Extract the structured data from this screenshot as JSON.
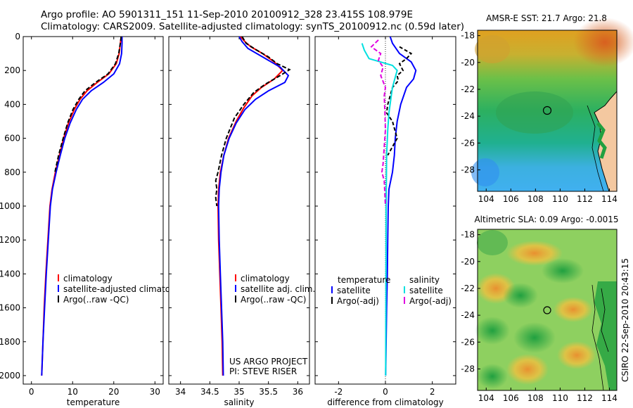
{
  "header": {
    "line1": "Argo profile: AO 5901311_151 11-Sep-2010 20100912_328 23.415S 108.979E",
    "line2": "Climatology: CARS2009. Satellite-adjusted climatology: synTS_20100912.nc (0.59d later)"
  },
  "side_text": "CSIRO 22-Sep-2010 20:43:15",
  "colors": {
    "climatology": "#ff0000",
    "satellite": "#0000ff",
    "argo": "#000000",
    "sal_satellite": "#00e0e0",
    "sal_argo": "#e000e0",
    "zero_line": "#000000"
  },
  "chart_data": [
    {
      "type": "line",
      "xlabel": "temperature",
      "xlim": [
        -2,
        32
      ],
      "ylim": [
        2050,
        0
      ],
      "xticks": [
        "0",
        "10",
        "20",
        "30"
      ],
      "xtick_values": [
        0,
        10,
        20,
        30
      ],
      "yticks": [
        "0",
        "200",
        "400",
        "600",
        "800",
        "1000",
        "1200",
        "1400",
        "1600",
        "1800",
        "2000"
      ],
      "ytick_values": [
        0,
        200,
        400,
        600,
        800,
        1000,
        1200,
        1400,
        1600,
        1800,
        2000
      ],
      "legend": [
        "climatology",
        "satellite-adjusted climatology",
        "Argo(..raw -QC)"
      ],
      "series": [
        {
          "name": "climatology",
          "color": "#ff0000",
          "dash": "none",
          "points": [
            [
              21.8,
              0
            ],
            [
              21.6,
              40
            ],
            [
              21.3,
              100
            ],
            [
              20.6,
              160
            ],
            [
              18.8,
              220
            ],
            [
              16.0,
              270
            ],
            [
              13.5,
              320
            ],
            [
              11.8,
              370
            ],
            [
              10.4,
              430
            ],
            [
              9.0,
              510
            ],
            [
              7.8,
              600
            ],
            [
              6.8,
              700
            ],
            [
              5.8,
              800
            ],
            [
              5.0,
              900
            ],
            [
              4.5,
              1000
            ],
            [
              4.0,
              1200
            ],
            [
              3.5,
              1400
            ],
            [
              3.1,
              1600
            ],
            [
              2.8,
              1800
            ],
            [
              2.5,
              2000
            ]
          ]
        },
        {
          "name": "satellite-adjusted climatology",
          "color": "#0000ff",
          "dash": "none",
          "points": [
            [
              22.0,
              0
            ],
            [
              22.0,
              40
            ],
            [
              21.9,
              100
            ],
            [
              21.4,
              160
            ],
            [
              20.0,
              220
            ],
            [
              17.5,
              270
            ],
            [
              14.5,
              320
            ],
            [
              12.4,
              370
            ],
            [
              10.9,
              430
            ],
            [
              9.4,
              510
            ],
            [
              8.1,
              600
            ],
            [
              7.0,
              700
            ],
            [
              6.0,
              800
            ],
            [
              5.1,
              900
            ],
            [
              4.6,
              1000
            ],
            [
              4.1,
              1200
            ],
            [
              3.6,
              1400
            ],
            [
              3.2,
              1600
            ],
            [
              2.8,
              1800
            ],
            [
              2.5,
              2000
            ]
          ]
        },
        {
          "name": "Argo(..raw -QC)",
          "color": "#000000",
          "dash": "6,3",
          "points": [
            [
              21.8,
              0
            ],
            [
              21.6,
              40
            ],
            [
              21.2,
              100
            ],
            [
              20.4,
              160
            ],
            [
              18.6,
              220
            ],
            [
              15.6,
              270
            ],
            [
              13.0,
              320
            ],
            [
              11.5,
              370
            ],
            [
              10.1,
              430
            ],
            [
              8.8,
              510
            ],
            [
              7.7,
              600
            ],
            [
              6.6,
              700
            ],
            [
              5.7,
              800
            ]
          ]
        }
      ],
      "annotations": []
    },
    {
      "type": "line",
      "xlabel": "salinity",
      "xlim": [
        33.8,
        36.2
      ],
      "ylim": [
        2050,
        0
      ],
      "xticks": [
        "34",
        "34.5",
        "35",
        "35.5",
        "36"
      ],
      "xtick_values": [
        34,
        34.5,
        35,
        35.5,
        36
      ],
      "legend": [
        "climatology",
        "satellite adj. clim.",
        "Argo(..raw -QC)"
      ],
      "series": [
        {
          "name": "climatology",
          "color": "#ff0000",
          "dash": "none",
          "points": [
            [
              35.02,
              0
            ],
            [
              35.1,
              30
            ],
            [
              35.2,
              60
            ],
            [
              35.4,
              100
            ],
            [
              35.6,
              150
            ],
            [
              35.74,
              200
            ],
            [
              35.6,
              250
            ],
            [
              35.38,
              300
            ],
            [
              35.22,
              350
            ],
            [
              35.08,
              420
            ],
            [
              34.95,
              500
            ],
            [
              34.82,
              600
            ],
            [
              34.74,
              700
            ],
            [
              34.68,
              800
            ],
            [
              34.65,
              900
            ],
            [
              34.64,
              1000
            ],
            [
              34.65,
              1200
            ],
            [
              34.67,
              1400
            ],
            [
              34.69,
              1600
            ],
            [
              34.71,
              1800
            ],
            [
              34.72,
              2000
            ]
          ]
        },
        {
          "name": "satellite adj. clim.",
          "color": "#0000ff",
          "dash": "none",
          "points": [
            [
              35.0,
              0
            ],
            [
              35.05,
              30
            ],
            [
              35.15,
              70
            ],
            [
              35.4,
              120
            ],
            [
              35.7,
              180
            ],
            [
              35.84,
              230
            ],
            [
              35.78,
              270
            ],
            [
              35.5,
              320
            ],
            [
              35.28,
              370
            ],
            [
              35.1,
              430
            ],
            [
              34.95,
              510
            ],
            [
              34.83,
              600
            ],
            [
              34.74,
              700
            ],
            [
              34.69,
              800
            ],
            [
              34.66,
              900
            ],
            [
              34.65,
              1000
            ],
            [
              34.66,
              1200
            ],
            [
              34.68,
              1400
            ],
            [
              34.7,
              1600
            ],
            [
              34.72,
              1800
            ],
            [
              34.73,
              2000
            ]
          ]
        },
        {
          "name": "Argo(..raw -QC)",
          "color": "#000000",
          "dash": "6,3",
          "points": [
            [
              35.05,
              0
            ],
            [
              35.12,
              40
            ],
            [
              35.3,
              80
            ],
            [
              35.5,
              120
            ],
            [
              35.65,
              160
            ],
            [
              35.86,
              195
            ],
            [
              35.7,
              230
            ],
            [
              35.45,
              280
            ],
            [
              35.25,
              330
            ],
            [
              35.08,
              400
            ],
            [
              34.92,
              480
            ],
            [
              34.78,
              600
            ],
            [
              34.7,
              700
            ],
            [
              34.64,
              800
            ],
            [
              34.6,
              850
            ],
            [
              34.62,
              900
            ],
            [
              34.6,
              950
            ],
            [
              34.62,
              1000
            ]
          ]
        }
      ],
      "annotations": [
        "US ARGO PROJECT",
        "PI: STEVE RISER"
      ]
    },
    {
      "type": "line",
      "xlabel": "difference from climatology",
      "xlim": [
        -3,
        3
      ],
      "ylim": [
        2050,
        0
      ],
      "xticks": [
        "-2",
        "0",
        "2"
      ],
      "xtick_values": [
        -2,
        0,
        2
      ],
      "legend_headers": [
        "temperature",
        "salinity"
      ],
      "legend": [
        "satellite",
        "Argo(-adj)",
        "satellite",
        "Argo(-adj)"
      ],
      "series": [
        {
          "name": "satellite",
          "group": "temperature",
          "color": "#0000ff",
          "dash": "none",
          "points": [
            [
              0.2,
              0
            ],
            [
              0.3,
              40
            ],
            [
              0.6,
              100
            ],
            [
              1.1,
              150
            ],
            [
              1.3,
              200
            ],
            [
              1.2,
              250
            ],
            [
              0.9,
              300
            ],
            [
              0.65,
              400
            ],
            [
              0.5,
              500
            ],
            [
              0.42,
              600
            ],
            [
              0.38,
              700
            ],
            [
              0.3,
              800
            ],
            [
              0.15,
              900
            ],
            [
              0.12,
              1000
            ],
            [
              0.1,
              1200
            ],
            [
              0.08,
              1400
            ],
            [
              0.05,
              1600
            ],
            [
              0.03,
              1800
            ],
            [
              0.01,
              2000
            ]
          ]
        },
        {
          "name": "Argo(-adj)",
          "group": "temperature",
          "color": "#000000",
          "dash": "5,3",
          "points": [
            [
              0.6,
              60
            ],
            [
              1.1,
              100
            ],
            [
              0.9,
              130
            ],
            [
              0.6,
              160
            ],
            [
              0.75,
              200
            ],
            [
              0.5,
              230
            ],
            [
              0.55,
              260
            ],
            [
              0.3,
              300
            ],
            [
              0.2,
              350
            ],
            [
              0.1,
              400
            ],
            [
              0.05,
              450
            ],
            [
              0.3,
              500
            ],
            [
              0.4,
              550
            ],
            [
              0.5,
              600
            ],
            [
              0.3,
              650
            ],
            [
              0.1,
              700
            ]
          ]
        },
        {
          "name": "satellite",
          "group": "salinity",
          "color": "#00e0e0",
          "dash": "none",
          "points": [
            [
              -1.0,
              40
            ],
            [
              -0.9,
              80
            ],
            [
              -0.7,
              130
            ],
            [
              0.3,
              170
            ],
            [
              0.5,
              200
            ],
            [
              0.4,
              250
            ],
            [
              0.3,
              300
            ],
            [
              0.25,
              350
            ],
            [
              0.15,
              450
            ],
            [
              0.1,
              550
            ],
            [
              0.05,
              700
            ],
            [
              0.03,
              1000
            ],
            [
              0.02,
              1500
            ],
            [
              0.01,
              2000
            ]
          ]
        },
        {
          "name": "Argo(-adj)",
          "group": "salinity",
          "color": "#e000e0",
          "dash": "6,3",
          "points": [
            [
              -0.3,
              20
            ],
            [
              -0.6,
              60
            ],
            [
              -0.2,
              100
            ],
            [
              -0.3,
              140
            ],
            [
              -0.1,
              180
            ],
            [
              -0.2,
              230
            ],
            [
              0.0,
              300
            ],
            [
              -0.05,
              350
            ],
            [
              -0.02,
              450
            ],
            [
              0.0,
              550
            ],
            [
              -0.05,
              650
            ],
            [
              -0.1,
              750
            ],
            [
              -0.15,
              800
            ],
            [
              -0.05,
              850
            ],
            [
              0.0,
              1000
            ]
          ]
        }
      ],
      "annotations": []
    }
  ],
  "maps": [
    {
      "title": "AMSR-E SST: 21.7 Argo: 21.8",
      "xticks": [
        "104",
        "106",
        "108",
        "110",
        "112",
        "114"
      ],
      "yticks": [
        "-18",
        "-20",
        "-22",
        "-24",
        "-26",
        "-28"
      ],
      "marker": {
        "lon": 108.979,
        "lat": -23.415
      }
    },
    {
      "title": "Altimetric SLA: 0.09 Argo: -0.0015",
      "xticks": [
        "104",
        "106",
        "108",
        "110",
        "112",
        "114"
      ],
      "yticks": [
        "-18",
        "-20",
        "-22",
        "-24",
        "-26",
        "-28"
      ],
      "marker": {
        "lon": 108.979,
        "lat": -23.415
      }
    }
  ]
}
